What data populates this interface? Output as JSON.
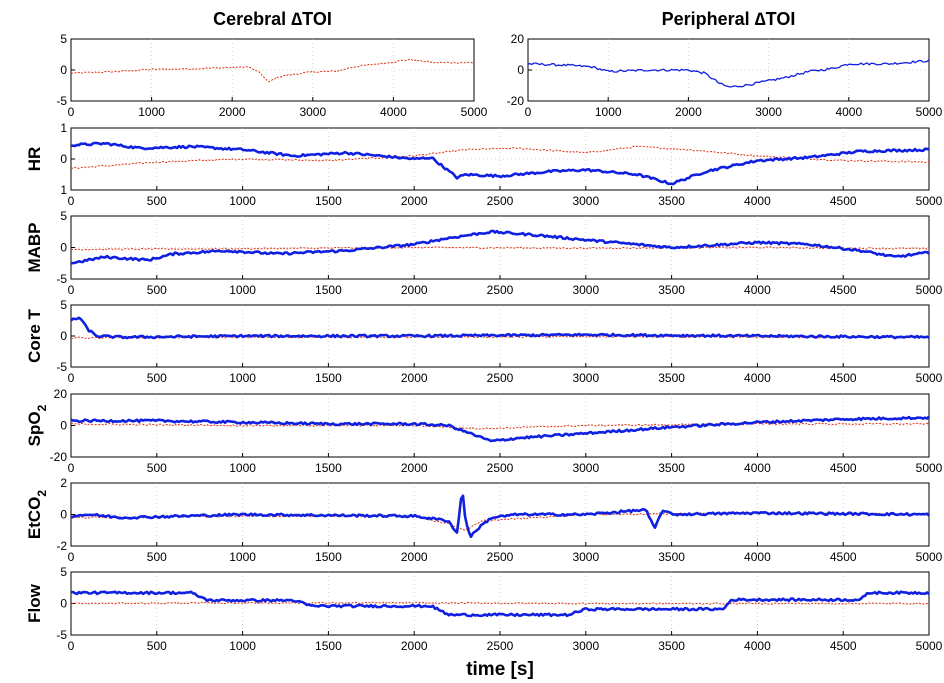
{
  "chart_data": [
    {
      "type": "line",
      "title": "Cerebral ∆TOI",
      "ylabel": "",
      "xlabel": "",
      "xlim": [
        0,
        5000
      ],
      "ylim": [
        -5,
        5
      ],
      "xticks": [
        "0",
        "1000",
        "2000",
        "3000",
        "4000",
        "5000"
      ],
      "yticks": [
        "5",
        "0",
        "-5"
      ],
      "series": [
        {
          "color": "#e03010",
          "style": "dashed",
          "x": [
            0,
            500,
            1000,
            1500,
            2000,
            2200,
            2350,
            2450,
            2550,
            2700,
            3000,
            3300,
            3500,
            4000,
            4200,
            4500,
            5000
          ],
          "y": [
            -0.5,
            -0.3,
            0.1,
            0.2,
            0.4,
            0.5,
            -0.5,
            -2.0,
            -1.2,
            -0.8,
            -0.3,
            -0.2,
            0.5,
            1.3,
            1.7,
            1.2,
            1.2
          ]
        }
      ]
    },
    {
      "type": "line",
      "title": "Peripheral ∆TOI",
      "ylabel": "",
      "xlabel": "",
      "xlim": [
        0,
        5000
      ],
      "ylim": [
        -20,
        20
      ],
      "xticks": [
        "0",
        "1000",
        "2000",
        "3000",
        "4000",
        "5000"
      ],
      "yticks": [
        "20",
        "0",
        "-20"
      ],
      "series": [
        {
          "color": "#1020e0",
          "style": "solid",
          "x": [
            0,
            500,
            800,
            1000,
            1500,
            2000,
            2200,
            2400,
            2500,
            2700,
            3000,
            3200,
            3500,
            3800,
            4000,
            4500,
            5000
          ],
          "y": [
            4,
            3,
            2,
            -1,
            0,
            0,
            -2,
            -9,
            -11,
            -10,
            -7,
            -5,
            -1,
            1,
            4,
            4,
            6
          ]
        }
      ]
    },
    {
      "type": "line",
      "ylabel": "HR",
      "xlabel": "",
      "xlim": [
        0,
        5000
      ],
      "ylim": [
        -1,
        1
      ],
      "xticks": [
        "0",
        "500",
        "1000",
        "1500",
        "2000",
        "2500",
        "3000",
        "3500",
        "4000",
        "4500",
        "5000"
      ],
      "yticks": [
        "1",
        "0",
        "1"
      ],
      "series": [
        {
          "color": "#1020e0",
          "style": "solid",
          "x": [
            0,
            200,
            400,
            700,
            1000,
            1300,
            1600,
            2000,
            2100,
            2250,
            2300,
            2500,
            2800,
            3000,
            3300,
            3500,
            3700,
            4000,
            4300,
            4600,
            5000
          ],
          "y": [
            0.45,
            0.5,
            0.35,
            0.4,
            0.3,
            0.1,
            0.2,
            0.0,
            0.05,
            -0.6,
            -0.5,
            -0.55,
            -0.4,
            -0.35,
            -0.5,
            -0.8,
            -0.4,
            -0.05,
            0.05,
            0.25,
            0.3
          ]
        },
        {
          "color": "#e03010",
          "style": "dashed",
          "x": [
            0,
            500,
            1000,
            1500,
            2000,
            2300,
            2600,
            3000,
            3300,
            3600,
            4000,
            4500,
            5000
          ],
          "y": [
            -0.3,
            -0.1,
            0.0,
            -0.05,
            0.1,
            0.3,
            0.35,
            0.2,
            0.4,
            0.3,
            0.1,
            -0.05,
            -0.1
          ]
        }
      ]
    },
    {
      "type": "line",
      "ylabel": "MABP",
      "xlabel": "",
      "xlim": [
        0,
        5000
      ],
      "ylim": [
        -5,
        5
      ],
      "xticks": [
        "0",
        "500",
        "1000",
        "1500",
        "2000",
        "2500",
        "3000",
        "3500",
        "4000",
        "4500",
        "5000"
      ],
      "yticks": [
        "5",
        "0",
        "-5"
      ],
      "series": [
        {
          "color": "#1020e0",
          "style": "solid",
          "x": [
            0,
            200,
            450,
            600,
            900,
            1200,
            1600,
            2000,
            2200,
            2450,
            2700,
            3000,
            3500,
            4000,
            4300,
            4600,
            4800,
            5000
          ],
          "y": [
            -2.5,
            -1.5,
            -2.0,
            -1.0,
            -0.5,
            -1.0,
            -0.5,
            0.5,
            1.5,
            2.5,
            2.0,
            1.2,
            0.0,
            0.8,
            0.5,
            -0.5,
            -1.5,
            -0.8
          ]
        },
        {
          "color": "#e03010",
          "style": "dashed",
          "x": [
            0,
            1000,
            2000,
            3000,
            4000,
            5000
          ],
          "y": [
            -0.3,
            -0.2,
            0.0,
            -0.1,
            0.0,
            -0.2
          ]
        }
      ]
    },
    {
      "type": "line",
      "ylabel": "Core T",
      "xlabel": "",
      "xlim": [
        0,
        5000
      ],
      "ylim": [
        -5,
        5
      ],
      "xticks": [
        "0",
        "500",
        "1000",
        "1500",
        "2000",
        "2500",
        "3000",
        "3500",
        "4000",
        "4500",
        "5000"
      ],
      "yticks": [
        "5",
        "0",
        "-5"
      ],
      "series": [
        {
          "color": "#1020e0",
          "style": "solid",
          "x": [
            0,
            50,
            100,
            150,
            300,
            1000,
            2000,
            3000,
            4000,
            5000
          ],
          "y": [
            2.5,
            3.0,
            1.0,
            0.0,
            -0.2,
            0.0,
            0.0,
            0.2,
            0.0,
            -0.2
          ]
        },
        {
          "color": "#e03010",
          "style": "dashed",
          "x": [
            0,
            1000,
            2000,
            3000,
            4000,
            5000
          ],
          "y": [
            -0.3,
            -0.2,
            -0.2,
            -0.1,
            -0.2,
            -0.2
          ]
        }
      ]
    },
    {
      "type": "line",
      "ylabel": "SpO2",
      "xlabel": "",
      "xlim": [
        0,
        5000
      ],
      "ylim": [
        -20,
        20
      ],
      "xticks": [
        "0",
        "500",
        "1000",
        "1500",
        "2000",
        "2500",
        "3000",
        "3500",
        "4000",
        "4500",
        "5000"
      ],
      "yticks": [
        "20",
        "0",
        "-20"
      ],
      "series": [
        {
          "color": "#1020e0",
          "style": "solid",
          "x": [
            0,
            500,
            1000,
            1500,
            2000,
            2200,
            2350,
            2450,
            2600,
            3000,
            3500,
            4000,
            4500,
            5000
          ],
          "y": [
            3,
            3,
            2,
            1,
            1,
            0,
            -6,
            -10,
            -8,
            -5,
            -1,
            2,
            4,
            5
          ]
        },
        {
          "color": "#e03010",
          "style": "dashed",
          "x": [
            0,
            1000,
            2000,
            2400,
            3000,
            4000,
            5000
          ],
          "y": [
            1,
            0,
            0,
            -2,
            0,
            1,
            1
          ]
        }
      ]
    },
    {
      "type": "line",
      "ylabel": "EtCO2",
      "xlabel": "",
      "xlim": [
        0,
        5000
      ],
      "ylim": [
        -2,
        2
      ],
      "xticks": [
        "0",
        "500",
        "1000",
        "1500",
        "2000",
        "2500",
        "3000",
        "3500",
        "4000",
        "4500",
        "5000"
      ],
      "yticks": [
        "2",
        "0",
        "-2"
      ],
      "series": [
        {
          "color": "#1020e0",
          "style": "solid",
          "x": [
            0,
            100,
            300,
            1000,
            2000,
            2200,
            2250,
            2280,
            2300,
            2330,
            2380,
            2450,
            2600,
            3000,
            3350,
            3400,
            3450,
            3500,
            4000,
            5000
          ],
          "y": [
            -0.1,
            0.0,
            -0.2,
            0.0,
            -0.1,
            -0.4,
            -1.2,
            1.7,
            -0.5,
            -1.4,
            -0.8,
            -0.2,
            0.0,
            0.0,
            0.3,
            -0.9,
            0.3,
            0.0,
            0.1,
            0.0
          ]
        },
        {
          "color": "#e03010",
          "style": "dashed",
          "x": [
            0,
            1000,
            2000,
            2200,
            2300,
            2400,
            3000,
            4000,
            5000
          ],
          "y": [
            -0.2,
            -0.1,
            -0.1,
            -0.6,
            -1.0,
            -0.4,
            0.0,
            0.1,
            0.0
          ]
        }
      ]
    },
    {
      "type": "line",
      "ylabel": "Flow",
      "xlabel": "time [s]",
      "xlim": [
        0,
        5000
      ],
      "ylim": [
        -5,
        5
      ],
      "xticks": [
        "0",
        "500",
        "1000",
        "1500",
        "2000",
        "2500",
        "3000",
        "3500",
        "4000",
        "4500",
        "5000"
      ],
      "yticks": [
        "5",
        "0",
        "-5"
      ],
      "series": [
        {
          "color": "#1020e0",
          "style": "solid",
          "x": [
            0,
            700,
            800,
            1300,
            1400,
            2100,
            2200,
            2900,
            3000,
            3800,
            3850,
            4600,
            4650,
            5000
          ],
          "y": [
            1.7,
            1.7,
            0.5,
            0.5,
            -0.4,
            -0.4,
            -1.8,
            -1.8,
            -0.9,
            -0.9,
            0.6,
            0.6,
            1.7,
            1.7
          ]
        },
        {
          "color": "#e03010",
          "style": "dashed",
          "x": [
            0,
            1000,
            2000,
            3000,
            4000,
            5000
          ],
          "y": [
            0.0,
            0.1,
            0.1,
            0.0,
            0.0,
            0.0
          ]
        }
      ]
    }
  ]
}
